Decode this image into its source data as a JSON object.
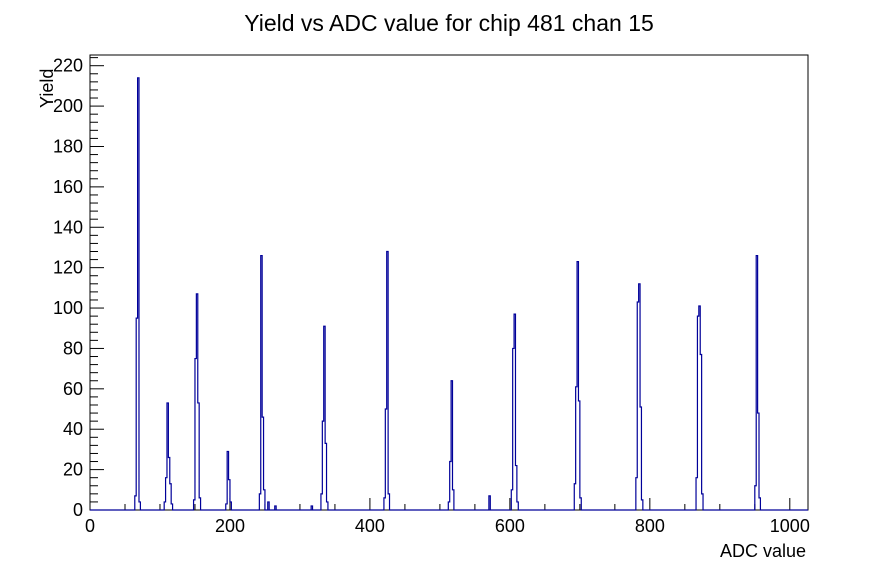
{
  "chart_data": {
    "type": "histogram",
    "title": "Yield vs ADC value for chip 481 chan 15",
    "xlabel": "ADC value",
    "ylabel": "Yield",
    "xlim": [
      0,
      1026
    ],
    "ylim": [
      0,
      225.3
    ],
    "x_major_ticks": [
      0,
      200,
      400,
      600,
      800,
      1000
    ],
    "x_minor_step": 50,
    "y_major_ticks": [
      0,
      20,
      40,
      60,
      80,
      100,
      120,
      140,
      160,
      180,
      200,
      220
    ],
    "y_minor_step": 4,
    "grid": false,
    "legend": false,
    "line_color": "#000099",
    "bin_width": 2,
    "peaks": [
      {
        "adc": 68,
        "yield": 214
      },
      {
        "adc": 110,
        "yield": 53
      },
      {
        "adc": 152,
        "yield": 107
      },
      {
        "adc": 196,
        "yield": 29
      },
      {
        "adc": 244,
        "yield": 126
      },
      {
        "adc": 334,
        "yield": 91
      },
      {
        "adc": 424,
        "yield": 128
      },
      {
        "adc": 516,
        "yield": 64
      },
      {
        "adc": 606,
        "yield": 97
      },
      {
        "adc": 696,
        "yield": 123
      },
      {
        "adc": 784,
        "yield": 112
      },
      {
        "adc": 870,
        "yield": 101
      },
      {
        "adc": 952,
        "yield": 126
      }
    ],
    "clusters": [
      {
        "bins": [
          [
            64,
            7
          ],
          [
            66,
            95
          ],
          [
            68,
            214
          ],
          [
            70,
            4
          ]
        ]
      },
      {
        "bins": [
          [
            106,
            4
          ],
          [
            108,
            16
          ],
          [
            110,
            53
          ],
          [
            112,
            26
          ],
          [
            114,
            13
          ],
          [
            116,
            3
          ]
        ]
      },
      {
        "bins": [
          [
            148,
            5
          ],
          [
            150,
            75
          ],
          [
            152,
            107
          ],
          [
            154,
            53
          ],
          [
            156,
            6
          ]
        ]
      },
      {
        "bins": [
          [
            194,
            3
          ],
          [
            196,
            29
          ],
          [
            198,
            15
          ],
          [
            200,
            4
          ]
        ]
      },
      {
        "bins": [
          [
            242,
            8
          ],
          [
            244,
            126
          ],
          [
            246,
            46
          ],
          [
            248,
            10
          ]
        ]
      },
      {
        "bins": [
          [
            254,
            4
          ]
        ]
      },
      {
        "bins": [
          [
            264,
            2
          ]
        ]
      },
      {
        "bins": [
          [
            316,
            2
          ]
        ]
      },
      {
        "bins": [
          [
            330,
            8
          ],
          [
            332,
            44
          ],
          [
            334,
            91
          ],
          [
            336,
            33
          ],
          [
            338,
            4
          ]
        ]
      },
      {
        "bins": [
          [
            420,
            6
          ],
          [
            422,
            50
          ],
          [
            424,
            128
          ],
          [
            426,
            8
          ]
        ]
      },
      {
        "bins": [
          [
            512,
            4
          ],
          [
            514,
            24
          ],
          [
            516,
            64
          ],
          [
            518,
            10
          ]
        ]
      },
      {
        "bins": [
          [
            570,
            7
          ]
        ]
      },
      {
        "bins": [
          [
            602,
            10
          ],
          [
            604,
            80
          ],
          [
            606,
            97
          ],
          [
            608,
            22
          ],
          [
            610,
            4
          ]
        ]
      },
      {
        "bins": [
          [
            692,
            13
          ],
          [
            694,
            61
          ],
          [
            696,
            123
          ],
          [
            698,
            54
          ],
          [
            700,
            6
          ]
        ]
      },
      {
        "bins": [
          [
            780,
            16
          ],
          [
            782,
            103
          ],
          [
            784,
            112
          ],
          [
            786,
            51
          ],
          [
            788,
            5
          ]
        ]
      },
      {
        "bins": [
          [
            866,
            16
          ],
          [
            868,
            96
          ],
          [
            870,
            101
          ],
          [
            872,
            77
          ],
          [
            874,
            8
          ]
        ]
      },
      {
        "bins": [
          [
            950,
            12
          ],
          [
            952,
            126
          ],
          [
            954,
            48
          ],
          [
            956,
            6
          ]
        ]
      }
    ]
  }
}
